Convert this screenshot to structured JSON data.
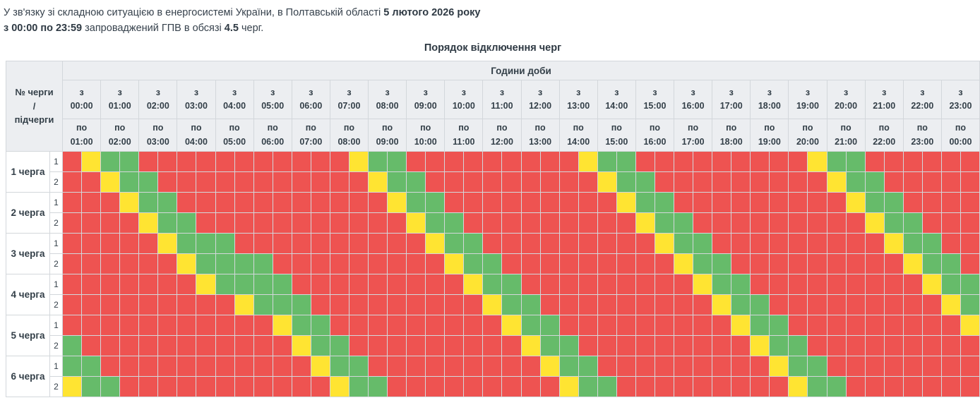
{
  "intro": {
    "line1_normal": "У зв'язку зі складною ситуацією в енергосистемі України, в Полтавській області ",
    "line1_bold": "5 лютого 2026 року",
    "line2_bold1": "з 00:00 по 23:59",
    "line2_normal1": " запроваджений ГПВ в обсязі ",
    "line2_bold2": "4.5",
    "line2_normal2": " черг."
  },
  "title": "Порядок відключення черг",
  "table": {
    "corner_label_lines": [
      "№ черги",
      "/",
      "підчерги"
    ],
    "hours_group_label": "Години доби",
    "from_prefix": "з",
    "to_prefix": "по",
    "from_times": [
      "00:00",
      "01:00",
      "02:00",
      "03:00",
      "04:00",
      "05:00",
      "06:00",
      "07:00",
      "08:00",
      "09:00",
      "10:00",
      "11:00",
      "12:00",
      "13:00",
      "14:00",
      "15:00",
      "16:00",
      "17:00",
      "18:00",
      "19:00",
      "20:00",
      "21:00",
      "22:00",
      "23:00"
    ],
    "to_times": [
      "01:00",
      "02:00",
      "03:00",
      "04:00",
      "05:00",
      "06:00",
      "07:00",
      "08:00",
      "09:00",
      "10:00",
      "11:00",
      "12:00",
      "13:00",
      "14:00",
      "15:00",
      "16:00",
      "17:00",
      "18:00",
      "19:00",
      "20:00",
      "21:00",
      "22:00",
      "23:00",
      "00:00"
    ],
    "slots_per_hour": 2,
    "status_colors": {
      "R": "#ee5351",
      "Y": "#ffe432",
      "G": "#66bb6a"
    },
    "queues": [
      {
        "label": "1 черга",
        "subqueues": [
          {
            "label": "1",
            "slots": "RYGGRRRRRRRRRRRYGGRRRRRRRRRYGGRRRRRRRRRYGGRRRRRR"
          },
          {
            "label": "2",
            "slots": "RRYGGRRRRRRRRRRRYGGRRRRRRRRRYGGRRRRRRRRRYGGRRRRR"
          }
        ]
      },
      {
        "label": "2 черга",
        "subqueues": [
          {
            "label": "1",
            "slots": "RRRYGGRRRRRRRRRRRYGGRRRRRRRRRYGGRRRRRRRRRYGGRRRR"
          },
          {
            "label": "2",
            "slots": "RRRRYGGRRRRRRRRRRRYGGRRRRRRRRRYGGRRRRRRRRRYGGRRR"
          }
        ]
      },
      {
        "label": "3 черга",
        "subqueues": [
          {
            "label": "1",
            "slots": "RRRRRYGGGRRRRRRRRRRYGGRRRRRRRRRYGGRRRRRRRRRYGGRR"
          },
          {
            "label": "2",
            "slots": "RRRRRRYGGGGRRRRRRRRRYGGRRRRRRRRRYGGRRRRRRRRRYGGR"
          }
        ]
      },
      {
        "label": "4 черга",
        "subqueues": [
          {
            "label": "1",
            "slots": "RRRRRRRYGGGGRRRRRRRRRYGGRRRRRRRRRYGGRRRRRRRRRYGG"
          },
          {
            "label": "2",
            "slots": "RRRRRRRRRYGGGRRRRRRRRRYGGRRRRRRRRRYGGRRRRRRRRRYG"
          }
        ]
      },
      {
        "label": "5 черга",
        "subqueues": [
          {
            "label": "1",
            "slots": "RRRRRRRRRRRYGGRRRRRRRRRYGGRRRRRRRRRYGGRRRRRRRRRY"
          },
          {
            "label": "2",
            "slots": "GRRRRRRRRRRRYGGRRRRRRRRRYGGRRRRRRRRRYGGRRRRRRRRR"
          }
        ]
      },
      {
        "label": "6 черга",
        "subqueues": [
          {
            "label": "1",
            "slots": "GGRRRRRRRRRRRYGGRRRRRRRRRYGGRRRRRRRRRYGGRRRRRRRR"
          },
          {
            "label": "2",
            "slots": "YGGRRRRRRRRRRRYGGRRRRRRRRRYGGRRRRRRRRRYGGRRRRRRR"
          }
        ]
      }
    ]
  }
}
